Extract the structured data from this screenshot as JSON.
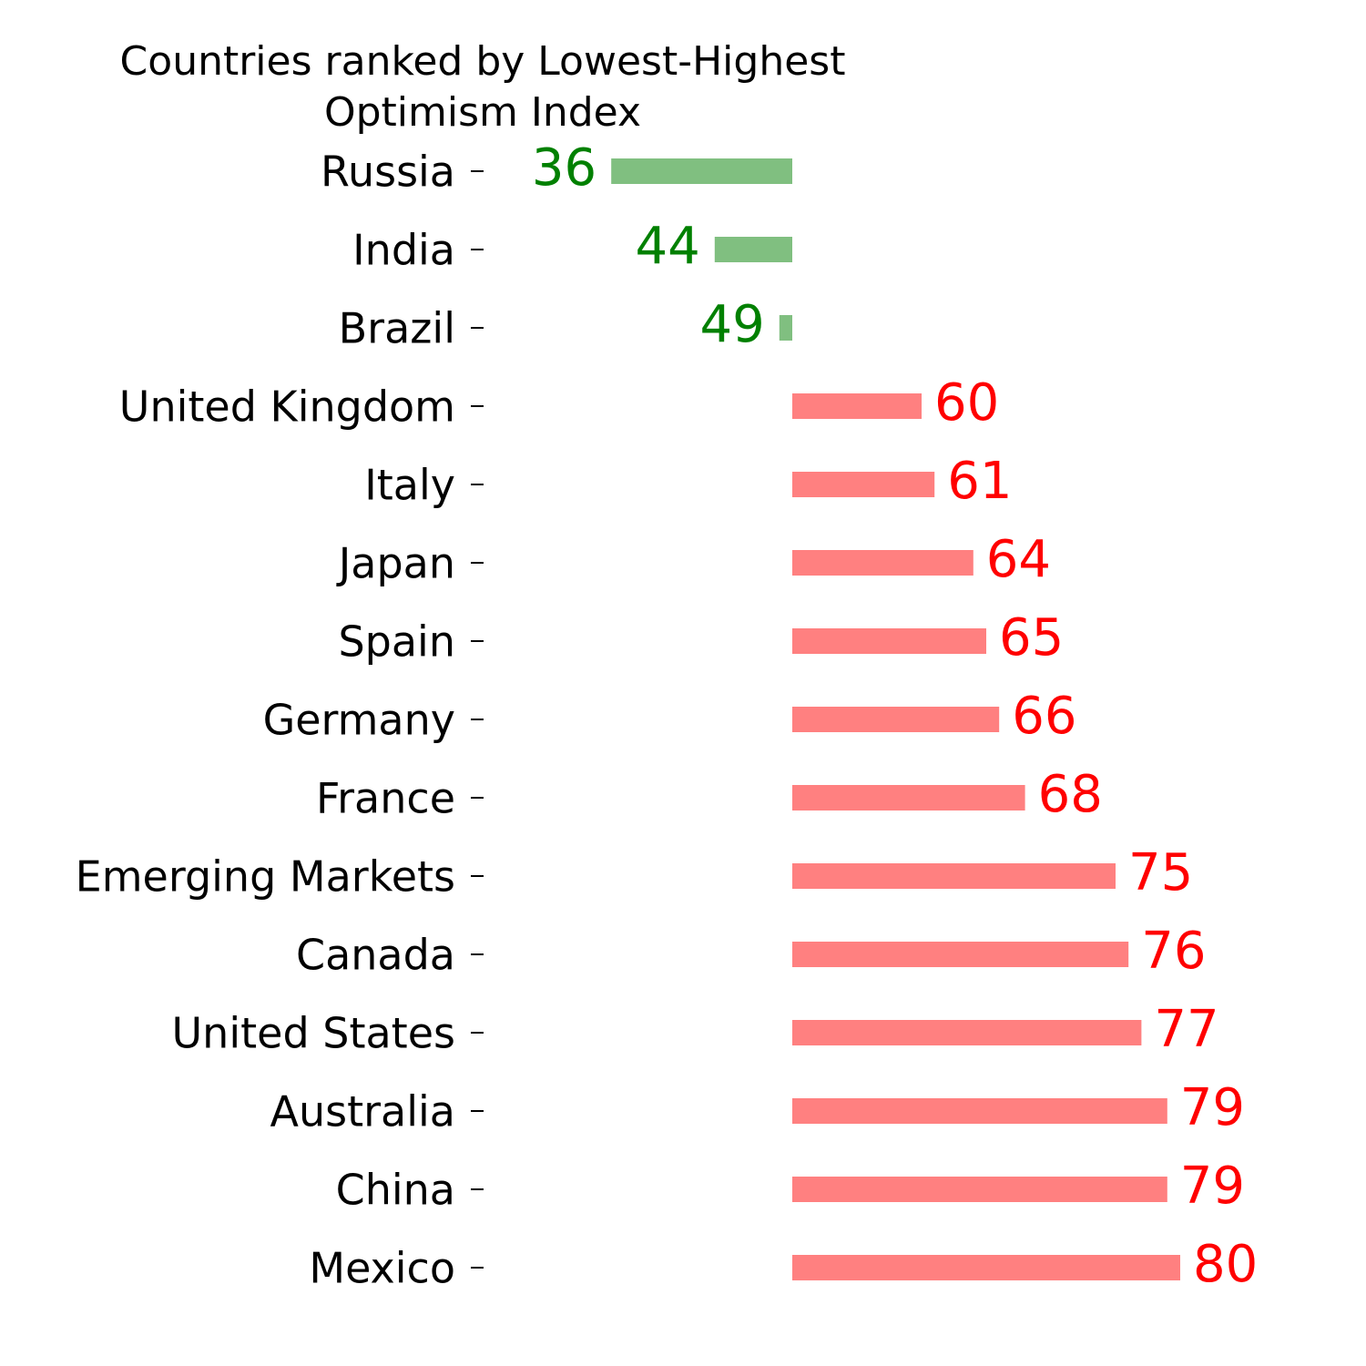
{
  "chart_data": {
    "type": "diverging-bar",
    "title": "Countries ranked by Lowest-Highest Optimism Index",
    "categories": [
      "Russia",
      "India",
      "Brazil",
      "United Kingdom",
      "Italy",
      "Japan",
      "Spain",
      "Germany",
      "France",
      "Emerging Markets",
      "Canada",
      "United States",
      "Australia",
      "China",
      "Mexico"
    ],
    "values": [
      36,
      44,
      49,
      60,
      61,
      64,
      65,
      66,
      68,
      75,
      76,
      77,
      79,
      79,
      80
    ],
    "baseline": 50,
    "xlim": [
      25,
      85
    ],
    "colors": {
      "below": {
        "bar": "#80bf80",
        "label": "#008000"
      },
      "above": {
        "bar": "#ff8080",
        "label": "#ff0000"
      }
    }
  }
}
